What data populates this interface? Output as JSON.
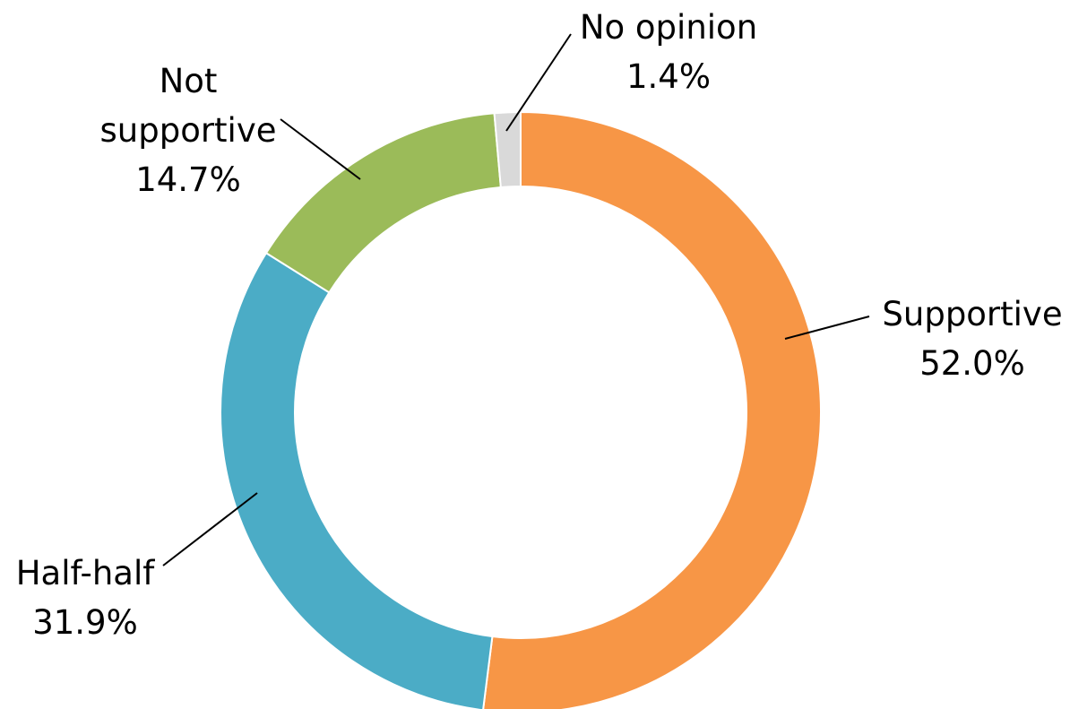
{
  "chart_data": {
    "type": "pie",
    "variant": "donut",
    "title": "",
    "slices": [
      {
        "label": "Supportive",
        "value": 52.0,
        "display": "52.0%",
        "color": "#F79646"
      },
      {
        "label": "Half-half",
        "value": 31.9,
        "display": "31.9%",
        "color": "#4BACC6"
      },
      {
        "label": "Not supportive",
        "value": 14.7,
        "display": "14.7%",
        "color": "#9BBB59"
      },
      {
        "label": "No opinion",
        "value": 1.4,
        "display": "1.4%",
        "color": "#D9D9D9"
      }
    ],
    "legend": "none",
    "start_angle": "12 o'clock",
    "direction": "clockwise"
  }
}
